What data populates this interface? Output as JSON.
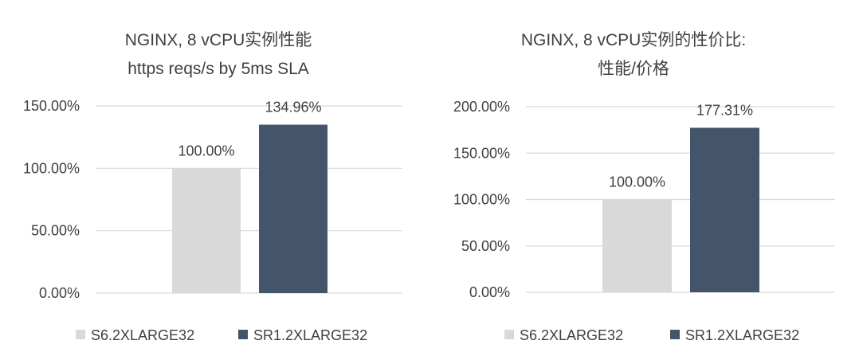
{
  "chart_data": [
    {
      "type": "bar",
      "title": [
        "NGINX, 8 vCPU实例性能",
        "https reqs/s by 5ms SLA"
      ],
      "categories": [
        "S6.2XLARGE32",
        "SR1.2XLARGE32"
      ],
      "values": [
        100.0,
        134.96
      ],
      "data_labels": [
        "100.00%",
        "134.96%"
      ],
      "ylim": [
        0,
        150
      ],
      "yticks": [
        "0.00%",
        "50.00%",
        "100.00%",
        "150.00%"
      ],
      "ytick_values": [
        0,
        50,
        100,
        150
      ],
      "colors": [
        "#d9d9d9",
        "#44546a"
      ],
      "legend": [
        "S6.2XLARGE32",
        "SR1.2XLARGE32"
      ],
      "legend_position": "bottom",
      "grid": true
    },
    {
      "type": "bar",
      "title": [
        "NGINX, 8 vCPU实例的性价比:",
        "性能/价格"
      ],
      "categories": [
        "S6.2XLARGE32",
        "SR1.2XLARGE32"
      ],
      "values": [
        100.0,
        177.31
      ],
      "data_labels": [
        "100.00%",
        "177.31%"
      ],
      "ylim": [
        0,
        200
      ],
      "yticks": [
        "0.00%",
        "50.00%",
        "100.00%",
        "150.00%",
        "200.00%"
      ],
      "ytick_values": [
        0,
        50,
        100,
        150,
        200
      ],
      "colors": [
        "#d9d9d9",
        "#44546a"
      ],
      "legend": [
        "S6.2XLARGE32",
        "SR1.2XLARGE32"
      ],
      "legend_position": "bottom",
      "grid": true
    }
  ]
}
